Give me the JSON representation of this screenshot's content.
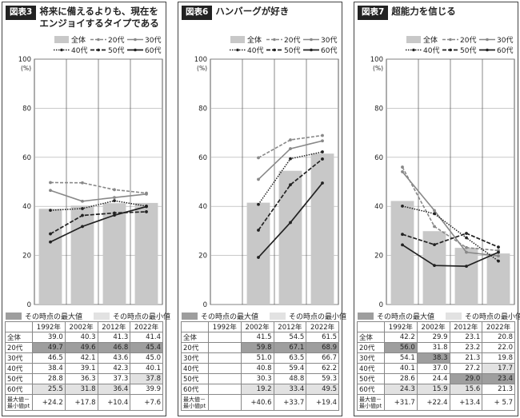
{
  "colors": {
    "bar": "#c8c8c8",
    "max": "#9e9e9e",
    "min": "#e2e2e2",
    "line_dark": "#222222",
    "line_gray": "#888888"
  },
  "legend": {
    "overall": "全体",
    "age20": "20代",
    "age30": "30代",
    "age40": "40代",
    "age50": "50代",
    "age60": "60代",
    "max_label": "その時点の最大値",
    "min_label": "その時点の最小値"
  },
  "row_labels": {
    "overall": "全体",
    "age20": "20代",
    "age30": "30代",
    "age40": "40代",
    "age50": "50代",
    "age60": "60代",
    "diff_l1": "最大値－",
    "diff_l2": "最小値pt"
  },
  "years": [
    "1992年",
    "2002年",
    "2012年",
    "2022年"
  ],
  "y_axis": {
    "ticks": [
      "0",
      "20",
      "40",
      "60",
      "80",
      "100"
    ],
    "unit": "(%)"
  },
  "chart_data": [
    {
      "type": "bar",
      "tag": "図表3",
      "title_lines": [
        "将来に備えるよりも、現在を",
        "エンジョイするタイプである"
      ],
      "categories": [
        "1992年",
        "2002年",
        "2012年",
        "2022年"
      ],
      "ylim": [
        0,
        100
      ],
      "series": [
        {
          "name": "全体",
          "values": [
            39.0,
            40.3,
            41.3,
            41.4
          ]
        },
        {
          "name": "20代",
          "values": [
            49.7,
            49.6,
            46.8,
            45.4
          ]
        },
        {
          "name": "30代",
          "values": [
            46.5,
            42.1,
            43.6,
            45.0
          ]
        },
        {
          "name": "40代",
          "values": [
            38.4,
            39.1,
            42.3,
            40.1
          ]
        },
        {
          "name": "50代",
          "values": [
            28.8,
            36.3,
            37.3,
            37.8
          ]
        },
        {
          "name": "60代",
          "values": [
            25.5,
            31.8,
            36.4,
            39.9
          ]
        }
      ],
      "table": [
        [
          "39.0",
          "40.3",
          "41.3",
          "41.4"
        ],
        [
          "49.7",
          "49.6",
          "46.8",
          "45.4"
        ],
        [
          "46.5",
          "42.1",
          "43.6",
          "45.0"
        ],
        [
          "38.4",
          "39.1",
          "42.3",
          "40.1"
        ],
        [
          "28.8",
          "36.3",
          "37.3",
          "37.8"
        ],
        [
          "25.5",
          "31.8",
          "36.4",
          "39.9"
        ]
      ],
      "diff": [
        "+24.2",
        "+17.8",
        "+10.4",
        "+7.6"
      ],
      "max_cells": [
        [
          1,
          0
        ],
        [
          1,
          1
        ],
        [
          1,
          2
        ],
        [
          1,
          3
        ]
      ],
      "min_cells": [
        [
          5,
          0
        ],
        [
          5,
          1
        ],
        [
          5,
          2
        ],
        [
          4,
          3
        ]
      ]
    },
    {
      "type": "bar",
      "tag": "図表6",
      "title_lines": [
        "ハンバーグが好き"
      ],
      "categories": [
        "1992年",
        "2002年",
        "2012年",
        "2022年"
      ],
      "ylim": [
        0,
        100
      ],
      "series": [
        {
          "name": "全体",
          "values": [
            null,
            41.5,
            54.5,
            61.5
          ]
        },
        {
          "name": "20代",
          "values": [
            null,
            59.8,
            67.1,
            68.9
          ]
        },
        {
          "name": "30代",
          "values": [
            null,
            51.0,
            63.5,
            66.7
          ]
        },
        {
          "name": "40代",
          "values": [
            null,
            40.8,
            59.4,
            62.2
          ]
        },
        {
          "name": "50代",
          "values": [
            null,
            30.3,
            48.8,
            59.3
          ]
        },
        {
          "name": "60代",
          "values": [
            null,
            19.2,
            33.4,
            49.5
          ]
        }
      ],
      "table": [
        [
          "",
          "41.5",
          "54.5",
          "61.5"
        ],
        [
          "",
          "59.8",
          "67.1",
          "68.9"
        ],
        [
          "",
          "51.0",
          "63.5",
          "66.7"
        ],
        [
          "",
          "40.8",
          "59.4",
          "62.2"
        ],
        [
          "",
          "30.3",
          "48.8",
          "59.3"
        ],
        [
          "",
          "19.2",
          "33.4",
          "49.5"
        ]
      ],
      "diff": [
        "",
        "+40.6",
        "+33.7",
        "+19.4"
      ],
      "max_cells": [
        [
          1,
          1
        ],
        [
          1,
          2
        ],
        [
          1,
          3
        ]
      ],
      "min_cells": [
        [
          5,
          1
        ],
        [
          5,
          2
        ],
        [
          5,
          3
        ]
      ]
    },
    {
      "type": "bar",
      "tag": "図表7",
      "title_lines": [
        "超能力を信じる"
      ],
      "categories": [
        "1992年",
        "2002年",
        "2012年",
        "2022年"
      ],
      "ylim": [
        0,
        100
      ],
      "series": [
        {
          "name": "全体",
          "values": [
            42.2,
            29.9,
            23.1,
            20.8
          ]
        },
        {
          "name": "20代",
          "values": [
            56.0,
            31.8,
            23.2,
            22.0
          ]
        },
        {
          "name": "30代",
          "values": [
            54.1,
            38.3,
            21.3,
            19.8
          ]
        },
        {
          "name": "40代",
          "values": [
            40.1,
            37.0,
            27.2,
            17.7
          ]
        },
        {
          "name": "50代",
          "values": [
            28.6,
            24.4,
            29.0,
            23.4
          ]
        },
        {
          "name": "60代",
          "values": [
            24.3,
            15.9,
            15.6,
            21.3
          ]
        }
      ],
      "table": [
        [
          "42.2",
          "29.9",
          "23.1",
          "20.8"
        ],
        [
          "56.0",
          "31.8",
          "23.2",
          "22.0"
        ],
        [
          "54.1",
          "38.3",
          "21.3",
          "19.8"
        ],
        [
          "40.1",
          "37.0",
          "27.2",
          "17.7"
        ],
        [
          "28.6",
          "24.4",
          "29.0",
          "23.4"
        ],
        [
          "24.3",
          "15.9",
          "15.6",
          "21.3"
        ]
      ],
      "diff": [
        "+31.7",
        "+22.4",
        "+13.4",
        "+ 5.7"
      ],
      "max_cells": [
        [
          1,
          0
        ],
        [
          2,
          1
        ],
        [
          4,
          2
        ],
        [
          4,
          3
        ]
      ],
      "min_cells": [
        [
          5,
          0
        ],
        [
          5,
          1
        ],
        [
          5,
          2
        ],
        [
          3,
          3
        ]
      ]
    }
  ]
}
